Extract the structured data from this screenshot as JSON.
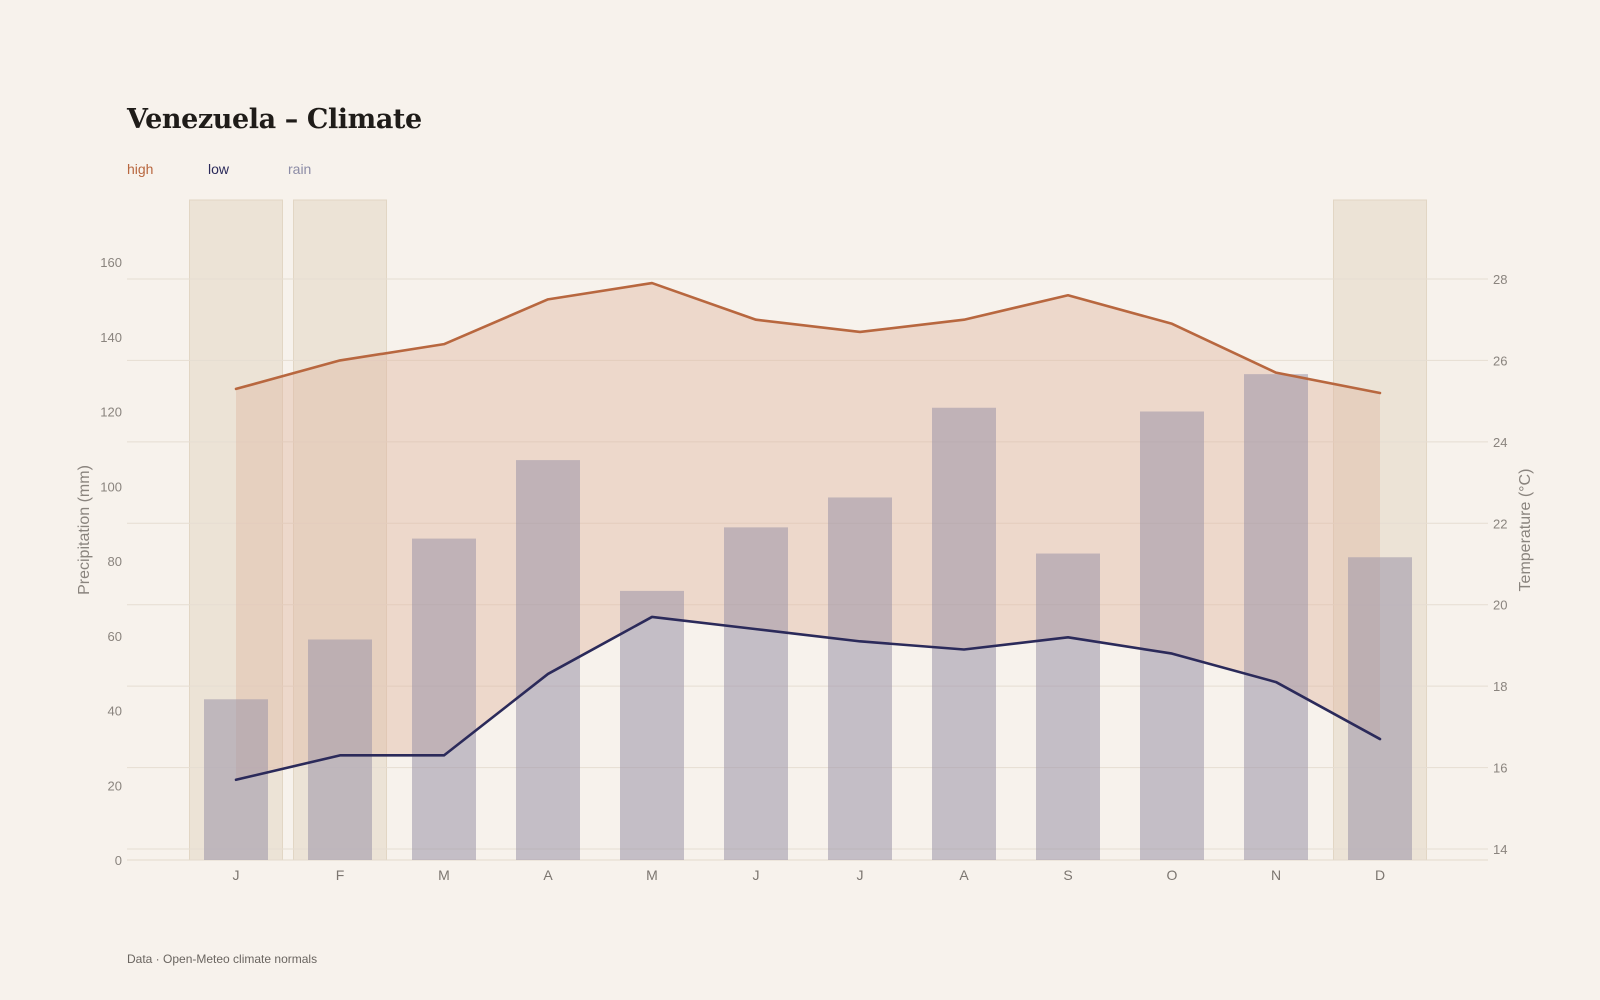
{
  "title": "Venezuela – Climate",
  "legend": {
    "high": "high",
    "low": "low",
    "rain": "rain"
  },
  "footer": "Data · Open-Meteo climate normals",
  "colors": {
    "high": "#b8673f",
    "low": "#2b2a5a",
    "rain_bar": "#c2bec9",
    "highlight": "#ece3d6",
    "band": "#e1b9a4"
  },
  "chart_data": {
    "type": "bar",
    "categories": [
      "J",
      "F",
      "M",
      "A",
      "M",
      "J",
      "J",
      "A",
      "S",
      "O",
      "N",
      "D"
    ],
    "highlighted_months": [
      0,
      1,
      11
    ],
    "series": [
      {
        "name": "rain",
        "type": "bar",
        "axis": "left",
        "values": [
          43,
          59,
          86,
          107,
          72,
          89,
          97,
          121,
          82,
          120,
          130,
          81
        ]
      },
      {
        "name": "high",
        "type": "line",
        "axis": "right",
        "values": [
          25.3,
          26.0,
          26.4,
          27.5,
          27.9,
          27.0,
          26.7,
          27.0,
          27.6,
          26.9,
          25.7,
          25.2
        ]
      },
      {
        "name": "low",
        "type": "line",
        "axis": "right",
        "values": [
          15.7,
          16.3,
          16.3,
          18.3,
          19.7,
          19.4,
          19.1,
          18.9,
          19.2,
          18.8,
          18.1,
          16.7
        ]
      }
    ],
    "ylabel": "Precipitation (mm)",
    "y2label": "Temperature (°C)",
    "ylim": [
      0,
      176
    ],
    "yticks": [
      0,
      20,
      40,
      60,
      80,
      100,
      120,
      140,
      160
    ],
    "y2lim": [
      13.7,
      30.0
    ],
    "y2ticks": [
      14,
      16,
      18,
      20,
      22,
      24,
      26,
      28
    ],
    "grid": true
  }
}
